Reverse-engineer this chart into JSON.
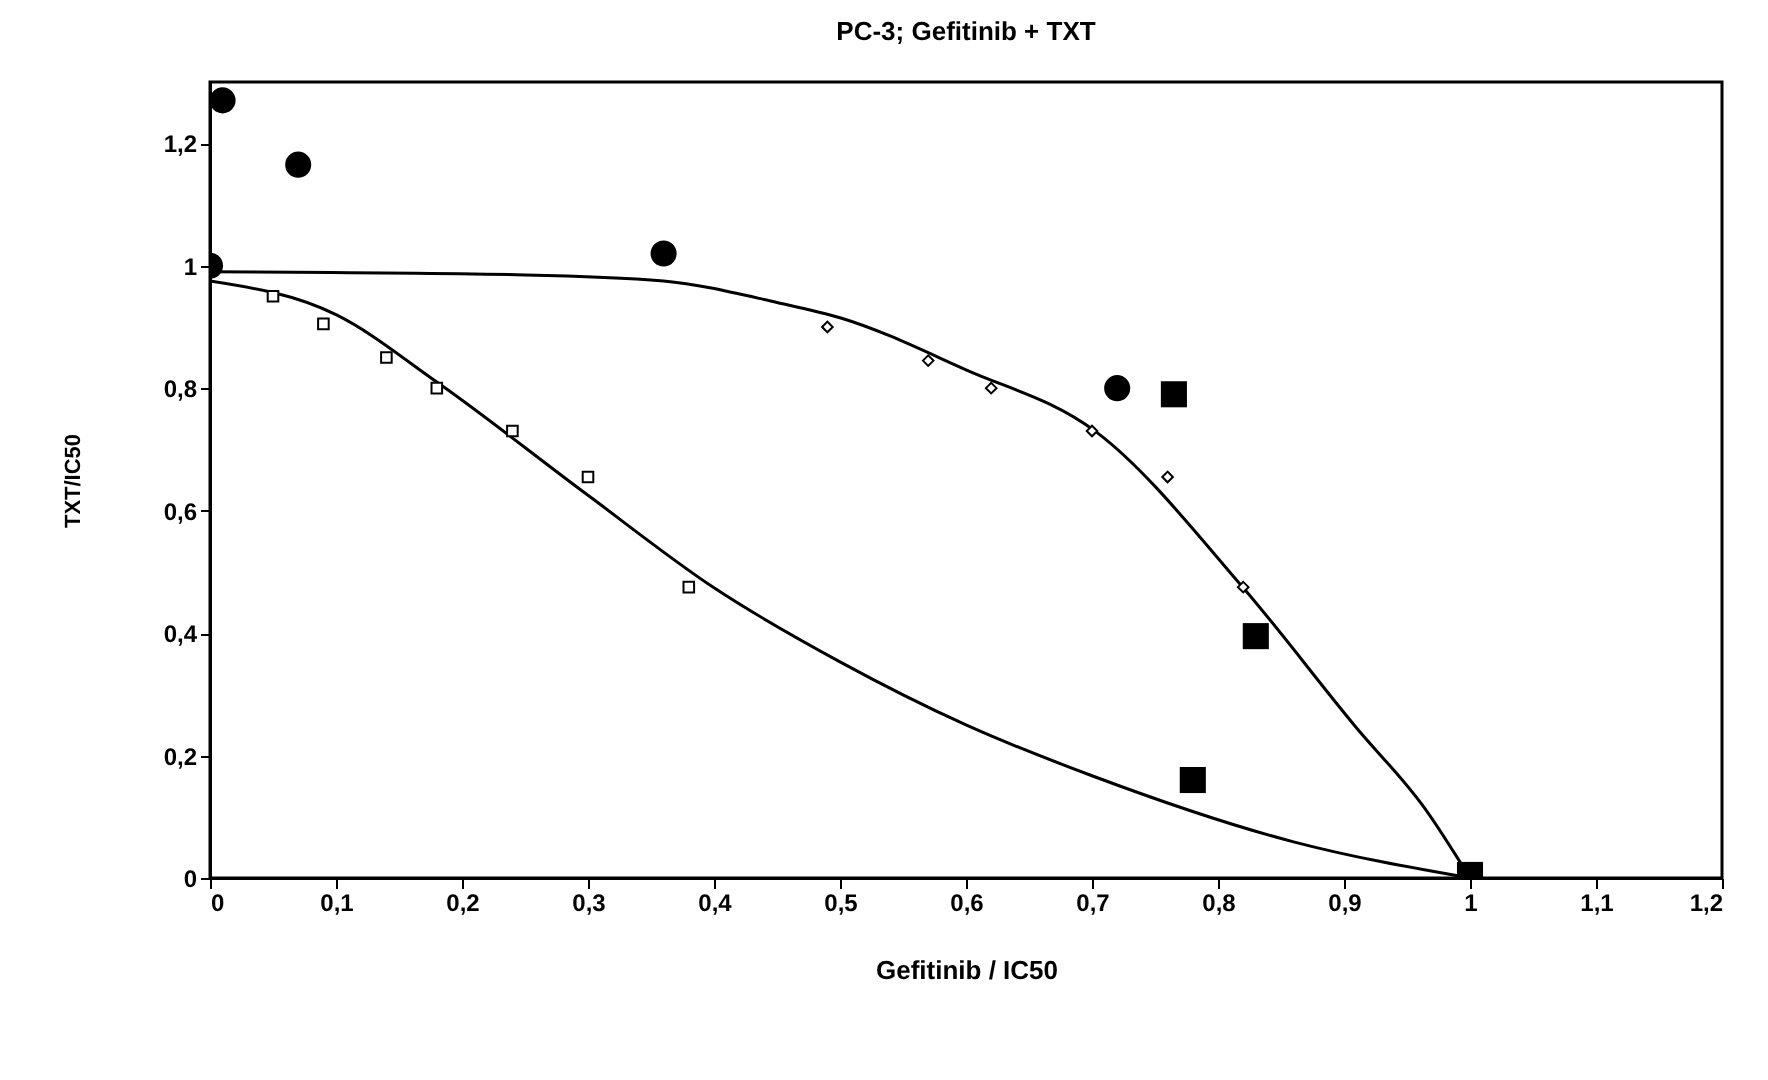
{
  "chart_data": {
    "type": "scatter",
    "title": "PC-3; Gefitinib + TXT",
    "xlabel": "Gefitinib / IC50",
    "ylabel": "TXT/IC50",
    "xlim": [
      0,
      1.2
    ],
    "ylim": [
      0,
      1.3
    ],
    "xticks": [
      0,
      {
        "value": 0.1,
        "label": "0,1"
      },
      {
        "value": 0.2,
        "label": "0,2"
      },
      {
        "value": 0.3,
        "label": "0,3"
      },
      {
        "value": 0.4,
        "label": "0,4"
      },
      {
        "value": 0.5,
        "label": "0,5"
      },
      {
        "value": 0.6,
        "label": "0,6"
      },
      {
        "value": 0.7,
        "label": "0,7"
      },
      {
        "value": 0.8,
        "label": "0,8"
      },
      {
        "value": 0.9,
        "label": "0,9"
      },
      1,
      {
        "value": 1.1,
        "label": "1,1"
      },
      {
        "value": 1.2,
        "label": "1,2"
      }
    ],
    "yticks": [
      0,
      {
        "value": 0.2,
        "label": "0,2"
      },
      {
        "value": 0.4,
        "label": "0,4"
      },
      {
        "value": 0.6,
        "label": "0,6"
      },
      {
        "value": 0.8,
        "label": "0,8"
      },
      1,
      {
        "value": 1.2,
        "label": "1,2"
      }
    ],
    "grid": false,
    "series": [
      {
        "type": "line",
        "color": "#000000",
        "marker": "none",
        "x": [
          0,
          0.25,
          0.36,
          0.45,
          0.5,
          0.6,
          0.703,
          0.82,
          0.91,
          0.964,
          1
        ],
        "values": [
          0.99,
          0.985,
          0.975,
          0.94,
          0.915,
          0.83,
          0.729,
          0.474,
          0.245,
          0.114,
          0
        ]
      },
      {
        "type": "line",
        "color": "#000000",
        "marker": "none",
        "x": [
          0,
          0.1,
          0.18,
          0.3,
          0.4,
          0.5,
          0.6,
          0.7,
          0.86,
          1
        ],
        "values": [
          0.975,
          0.92,
          0.81,
          0.625,
          0.474,
          0.353,
          0.25,
          0.167,
          0.059,
          0
        ]
      },
      {
        "color": "#ffffff",
        "marker": "square",
        "x": [
          0.05,
          0.09,
          0.14,
          0.18,
          0.24,
          0.3,
          0.38
        ],
        "values": [
          0.95,
          0.905,
          0.85,
          0.8,
          0.73,
          0.655,
          0.475
        ]
      },
      {
        "color": "#ffffff",
        "marker": "diamond",
        "x": [
          0.49,
          0.57,
          0.62,
          0.7,
          0.76,
          0.82
        ],
        "values": [
          0.9,
          0.845,
          0.8,
          0.73,
          0.655,
          0.475
        ]
      },
      {
        "color": "#000000",
        "marker": "circle",
        "x": [
          0,
          0.01,
          0.07,
          0.36,
          0.72
        ],
        "values": [
          1.0,
          1.27,
          1.165,
          1.02,
          0.8
        ]
      },
      {
        "color": "#000000",
        "marker": "square",
        "x": [
          0.765,
          0.83,
          0.78,
          1.0
        ],
        "values": [
          0.79,
          0.395,
          0.16,
          0.005
        ]
      }
    ]
  }
}
